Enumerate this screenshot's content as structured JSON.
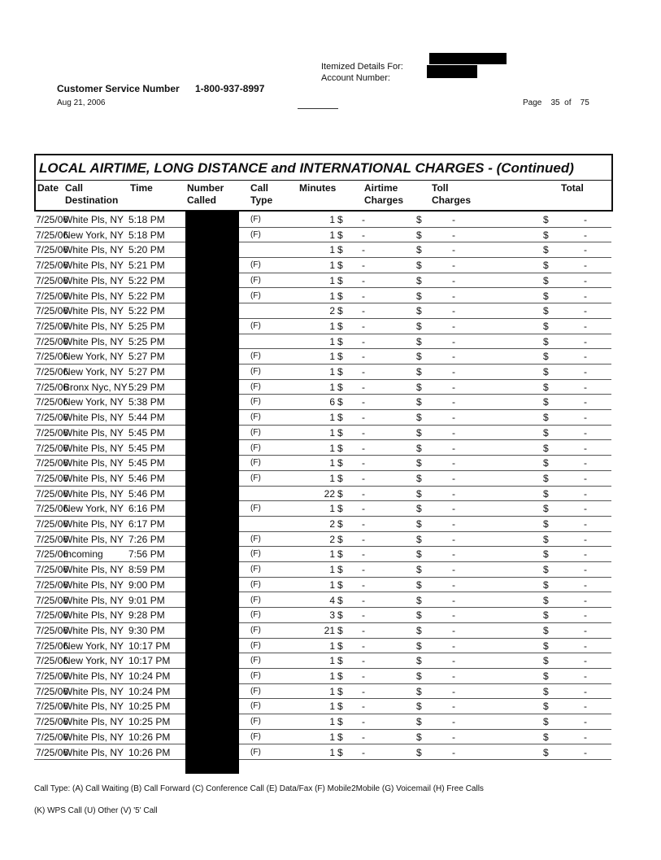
{
  "header": {
    "itemized_label": "Itemized Details For:",
    "account_label": "Account Number:",
    "customer_service_label": "Customer Service Number",
    "customer_service_number": "1-800-937-8997",
    "date": "Aug 21, 2006",
    "page_label": "Page",
    "page_current": "35",
    "page_of": "of",
    "page_total": "75"
  },
  "section_title": "LOCAL AIRTIME, LONG DISTANCE and INTERNATIONAL CHARGES  - (Continued)",
  "columns": {
    "date": "Date",
    "destination": "Call Destination",
    "time": "Time",
    "number": "Number Called",
    "type": "Call Type",
    "minutes": "Minutes",
    "airtime": "Airtime Charges",
    "toll": "Toll Charges",
    "total": "Total"
  },
  "currency": "$",
  "empty_charge": "-",
  "rows": [
    [
      "7/25/06",
      "White Pls, NY",
      "5:18 PM",
      "(F)",
      "1"
    ],
    [
      "7/25/06",
      "New York, NY",
      "5:18 PM",
      "(F)",
      "1"
    ],
    [
      "7/25/06",
      "White Pls, NY",
      "5:20 PM",
      "",
      "1"
    ],
    [
      "7/25/06",
      "White Pls, NY",
      "5:21 PM",
      "(F)",
      "1"
    ],
    [
      "7/25/06",
      "White Pls, NY",
      "5:22 PM",
      "(F)",
      "1"
    ],
    [
      "7/25/06",
      "White Pls, NY",
      "5:22 PM",
      "(F)",
      "1"
    ],
    [
      "7/25/06",
      "White Pls, NY",
      "5:22 PM",
      "",
      "2"
    ],
    [
      "7/25/06",
      "White Pls, NY",
      "5:25 PM",
      "(F)",
      "1"
    ],
    [
      "7/25/06",
      "White Pls, NY",
      "5:25 PM",
      "",
      "1"
    ],
    [
      "7/25/06",
      "New York, NY",
      "5:27 PM",
      "(F)",
      "1"
    ],
    [
      "7/25/06",
      "New York, NY",
      "5:27 PM",
      "(F)",
      "1"
    ],
    [
      "7/25/06",
      "Bronx Nyc, NY",
      "5:29 PM",
      "(F)",
      "1"
    ],
    [
      "7/25/06",
      "New York, NY",
      "5:38 PM",
      "(F)",
      "6"
    ],
    [
      "7/25/06",
      "White Pls, NY",
      "5:44 PM",
      "(F)",
      "1"
    ],
    [
      "7/25/06",
      "White Pls, NY",
      "5:45 PM",
      "(F)",
      "1"
    ],
    [
      "7/25/06",
      "White Pls, NY",
      "5:45 PM",
      "(F)",
      "1"
    ],
    [
      "7/25/06",
      "White Pls, NY",
      "5:45 PM",
      "(F)",
      "1"
    ],
    [
      "7/25/06",
      "White Pls, NY",
      "5:46 PM",
      "(F)",
      "1"
    ],
    [
      "7/25/06",
      "White Pls, NY",
      "5:46 PM",
      "",
      "22"
    ],
    [
      "7/25/06",
      "New York, NY",
      "6:16 PM",
      "(F)",
      "1"
    ],
    [
      "7/25/06",
      "White Pls, NY",
      "6:17 PM",
      "",
      "2"
    ],
    [
      "7/25/06",
      "White Pls, NY",
      "7:26 PM",
      "(F)",
      "2"
    ],
    [
      "7/25/06",
      "Incoming",
      "7:56 PM",
      "(F)",
      "1"
    ],
    [
      "7/25/06",
      "White Pls, NY",
      "8:59 PM",
      "(F)",
      "1"
    ],
    [
      "7/25/06",
      "White Pls, NY",
      "9:00 PM",
      "(F)",
      "1"
    ],
    [
      "7/25/06",
      "White Pls, NY",
      "9:01 PM",
      "(F)",
      "4"
    ],
    [
      "7/25/06",
      "White Pls, NY",
      "9:28 PM",
      "(F)",
      "3"
    ],
    [
      "7/25/06",
      "White Pls, NY",
      "9:30 PM",
      "(F)",
      "21"
    ],
    [
      "7/25/06",
      "New York, NY",
      "10:17 PM",
      "(F)",
      "1"
    ],
    [
      "7/25/06",
      "New York, NY",
      "10:17 PM",
      "(F)",
      "1"
    ],
    [
      "7/25/06",
      "White Pls, NY",
      "10:24 PM",
      "(F)",
      "1"
    ],
    [
      "7/25/06",
      "White Pls, NY",
      "10:24 PM",
      "(F)",
      "1"
    ],
    [
      "7/25/06",
      "White Pls, NY",
      "10:25 PM",
      "(F)",
      "1"
    ],
    [
      "7/25/06",
      "White Pls, NY",
      "10:25 PM",
      "(F)",
      "1"
    ],
    [
      "7/25/06",
      "White Pls, NY",
      "10:26 PM",
      "(F)",
      "1"
    ],
    [
      "7/25/06",
      "White Pls, NY",
      "10:26 PM",
      "(F)",
      "1"
    ]
  ],
  "footer": {
    "legend_line1": "Call Type: (A) Call Waiting (B) Call Forward (C) Conference Call (E) Data/Fax (F) Mobile2Mobile (G) Voicemail (H) Free Calls",
    "legend_line2": "(K) WPS Call (U) Other (V) '5' Call"
  }
}
